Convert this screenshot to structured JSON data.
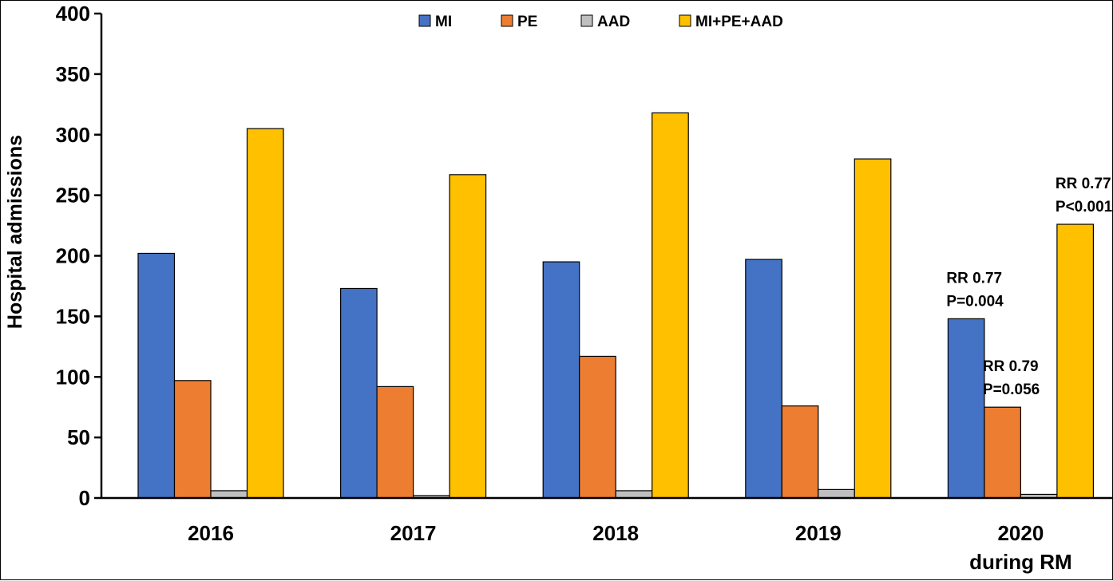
{
  "chart_data": {
    "type": "bar",
    "title": "",
    "xlabel": "",
    "ylabel": "Hospital admissions",
    "ylim": [
      0,
      400
    ],
    "yticks": [
      0,
      50,
      100,
      150,
      200,
      250,
      300,
      350,
      400
    ],
    "categories": [
      [
        "2016"
      ],
      [
        "2017"
      ],
      [
        "2018"
      ],
      [
        "2019"
      ],
      [
        "2020",
        "during RM"
      ]
    ],
    "series": [
      {
        "name": "MI",
        "color": "#4472C4",
        "values": [
          202,
          173,
          195,
          197,
          148
        ]
      },
      {
        "name": "PE",
        "color": "#ED7D31",
        "values": [
          97,
          92,
          117,
          76,
          75
        ]
      },
      {
        "name": "AAD",
        "color": "#BFBFBF",
        "values": [
          6,
          2,
          6,
          7,
          3
        ]
      },
      {
        "name": "MI+PE+AAD",
        "color": "#FFC000",
        "values": [
          305,
          267,
          318,
          280,
          226
        ]
      }
    ],
    "legend": "top-center",
    "grid": false,
    "annotations": [
      {
        "series": "MI",
        "category": 4,
        "lines": [
          "RR 0.77",
          "P=0.004"
        ]
      },
      {
        "series": "PE",
        "category": 4,
        "lines": [
          "RR 0.79",
          "P=0.056"
        ]
      },
      {
        "series": "MI+PE+AAD",
        "category": 4,
        "lines": [
          "RR 0.77",
          "P<0.001"
        ]
      }
    ]
  }
}
